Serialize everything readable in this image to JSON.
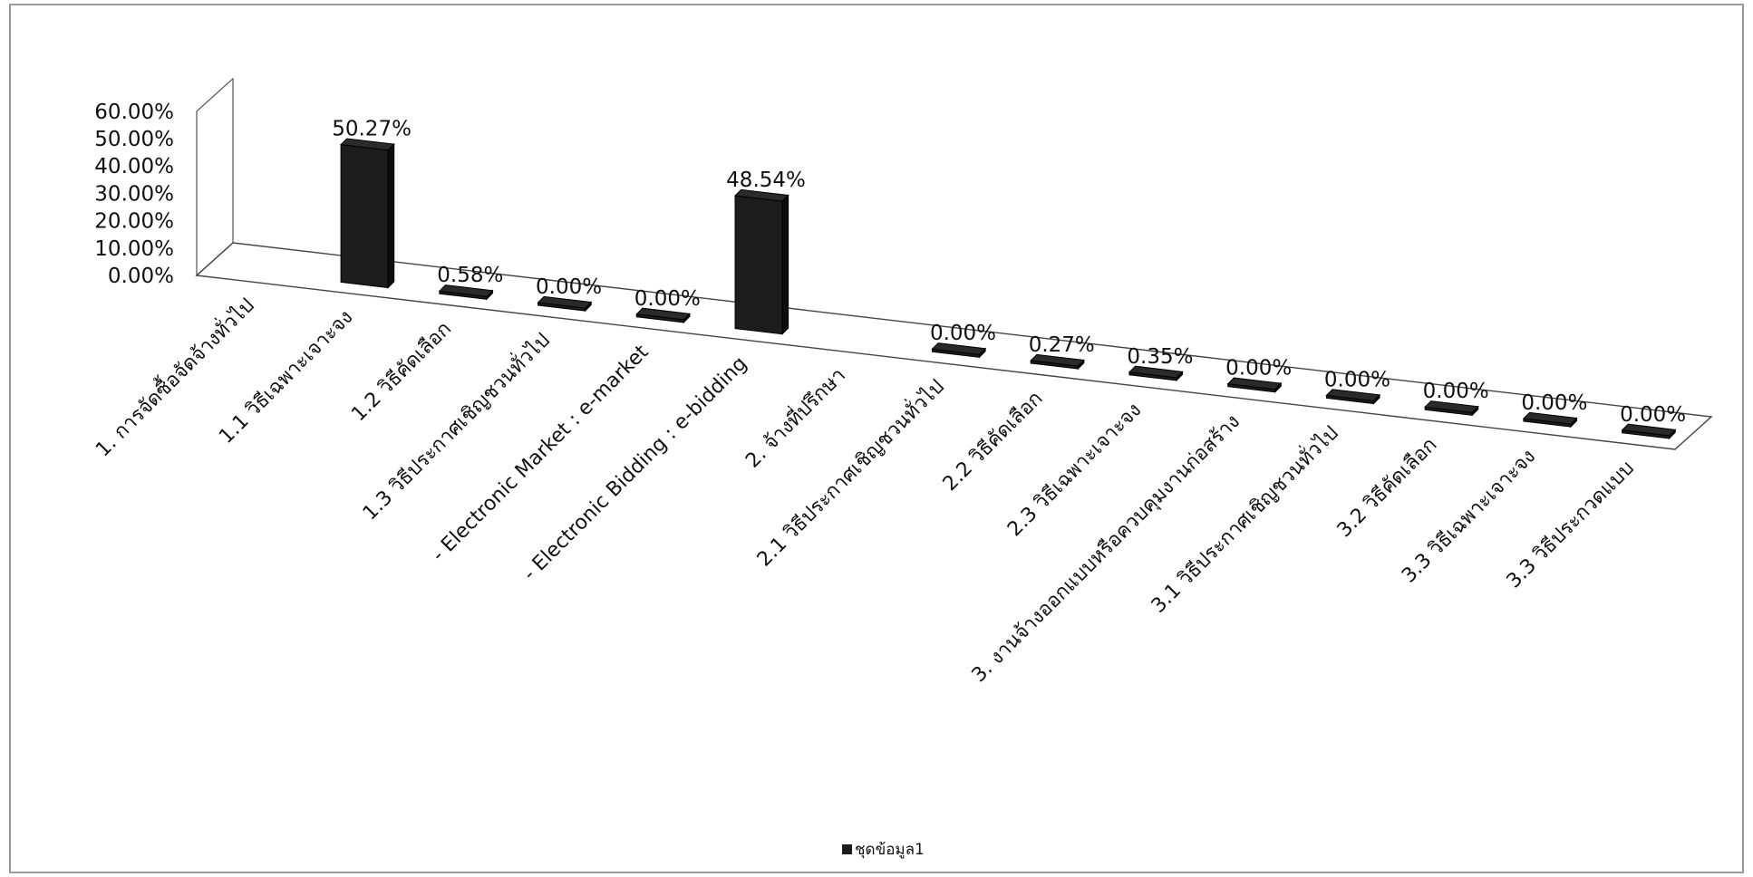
{
  "chart_data": {
    "type": "bar",
    "title": "",
    "xlabel": "",
    "ylabel": "",
    "ylim": [
      0,
      0.6
    ],
    "yticks": [
      "0.00%",
      "10.00%",
      "20.00%",
      "30.00%",
      "40.00%",
      "50.00%",
      "60.00%"
    ],
    "grid": false,
    "legend_position": "bottom",
    "style": "3d",
    "bar_color": "#1c1c1c",
    "categories": [
      "1. การจัดซื้อจัดจ้างทั่วไป",
      "1.1 วิธีเฉพาะเจาะจง",
      "1.2 วิธีคัดเลือก",
      "1.3 วิธีประกาศเชิญชวนทั่วไป",
      "- Electronic Market : e-market",
      "- Electronic Bidding : e-bidding",
      "2. จ้างที่ปรึกษา",
      "2.1 วิธีประกาศเชิญชวนทั่วไป",
      "2.2 วิธีคัดเลือก",
      "2.3 วิธีเฉพาะเจาะจง",
      "3. งานจ้างออกแบบหรือควบคุมงานก่อสร้าง",
      "3.1 วิธีประกาศเชิญชวนทั่วไป",
      "3.2 วิธีคัดเลือก",
      "3.3 วิธีเฉพาะเจาะจง",
      "3.3 วิธีประกวดแบบ"
    ],
    "series": [
      {
        "name": "ชุดข้อมูล1",
        "values": [
          null,
          0.5027,
          0.0058,
          0.0,
          0.0,
          0.4854,
          null,
          0.0,
          0.0027,
          0.0035,
          0.0,
          0.0,
          0.0,
          0.0,
          0.0
        ],
        "labels": [
          "",
          "50.27%",
          "0.58%",
          "0.00%",
          "0.00%",
          "48.54%",
          "",
          "0.00%",
          "0.27%",
          "0.35%",
          "0.00%",
          "0.00%",
          "0.00%",
          "0.00%",
          "0.00%"
        ]
      }
    ]
  }
}
